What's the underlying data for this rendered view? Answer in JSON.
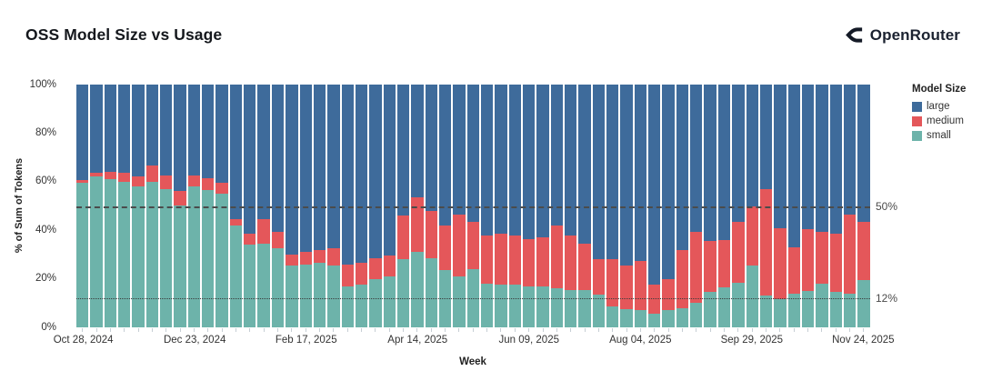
{
  "header": {
    "title": "OSS Model Size vs Usage",
    "logo_text": "OpenRouter"
  },
  "chart": {
    "y_axis": {
      "title": "% of Sum of Tokens",
      "ticks": [
        "0%",
        "20%",
        "40%",
        "60%",
        "80%",
        "100%"
      ],
      "tick_values": [
        0,
        20,
        40,
        60,
        80,
        100
      ]
    },
    "x_axis": {
      "title": "Week",
      "ticks": [
        "Oct 28, 2024",
        "Dec 23, 2024",
        "Feb 17, 2025",
        "Apr 14, 2025",
        "Jun 09, 2025",
        "Aug 04, 2025",
        "Sep 29, 2025",
        "Nov 24, 2025"
      ],
      "tick_indices": [
        0,
        8,
        16,
        24,
        32,
        40,
        48,
        56
      ]
    },
    "legend": {
      "title": "Model Size",
      "items": [
        {
          "label": "large",
          "color": "#3e6b9b"
        },
        {
          "label": "medium",
          "color": "#e4575a"
        },
        {
          "label": "small",
          "color": "#6db3aa"
        }
      ]
    }
  },
  "chart_data": {
    "type": "bar",
    "stacked": true,
    "unit": "percent",
    "title": "OSS Model Size vs Usage",
    "xlabel": "Week",
    "ylabel": "% of Sum of Tokens",
    "ylim": [
      0,
      100
    ],
    "grid": false,
    "legend_position": "right",
    "x": [
      "Oct 28, 2024",
      "Nov 04, 2024",
      "Nov 11, 2024",
      "Nov 18, 2024",
      "Nov 25, 2024",
      "Dec 02, 2024",
      "Dec 09, 2024",
      "Dec 16, 2024",
      "Dec 23, 2024",
      "Dec 30, 2024",
      "Jan 06, 2025",
      "Jan 13, 2025",
      "Jan 20, 2025",
      "Jan 27, 2025",
      "Feb 03, 2025",
      "Feb 10, 2025",
      "Feb 17, 2025",
      "Feb 24, 2025",
      "Mar 03, 2025",
      "Mar 10, 2025",
      "Mar 17, 2025",
      "Mar 24, 2025",
      "Mar 31, 2025",
      "Apr 07, 2025",
      "Apr 14, 2025",
      "Apr 21, 2025",
      "Apr 28, 2025",
      "May 05, 2025",
      "May 12, 2025",
      "May 19, 2025",
      "May 26, 2025",
      "Jun 02, 2025",
      "Jun 09, 2025",
      "Jun 16, 2025",
      "Jun 23, 2025",
      "Jun 30, 2025",
      "Jul 07, 2025",
      "Jul 14, 2025",
      "Jul 21, 2025",
      "Jul 28, 2025",
      "Aug 04, 2025",
      "Aug 11, 2025",
      "Aug 18, 2025",
      "Aug 25, 2025",
      "Sep 01, 2025",
      "Sep 08, 2025",
      "Sep 15, 2025",
      "Sep 22, 2025",
      "Sep 29, 2025",
      "Oct 06, 2025",
      "Oct 13, 2025",
      "Oct 20, 2025",
      "Oct 27, 2025",
      "Nov 03, 2025",
      "Nov 10, 2025",
      "Nov 17, 2025",
      "Nov 24, 2025"
    ],
    "series": [
      {
        "name": "small",
        "color": "#6db3aa",
        "values": [
          59.5,
          62,
          61,
          60,
          58,
          60,
          57,
          50,
          58,
          56.5,
          55,
          42,
          34,
          34.5,
          32.5,
          25.5,
          26,
          26.5,
          25.5,
          17,
          17.5,
          20,
          21,
          28,
          31,
          28.5,
          23.5,
          21,
          24,
          18,
          17.5,
          17.5,
          17,
          17,
          16,
          15.5,
          15.5,
          13.5,
          8.5,
          7.5,
          7,
          5.5,
          7,
          8,
          10,
          14.5,
          16.5,
          18.5,
          25.5,
          13,
          11.5,
          14,
          15,
          18,
          14.5,
          14,
          19.5
        ]
      },
      {
        "name": "medium",
        "color": "#e4575a",
        "values": [
          1,
          1.5,
          3,
          3.5,
          4,
          6.5,
          5.5,
          6,
          4.5,
          5,
          4.5,
          2.5,
          4.5,
          10,
          7,
          4.5,
          5,
          5.5,
          7,
          9,
          9,
          8.5,
          8.5,
          18,
          22.5,
          19.5,
          18.5,
          25.5,
          19.5,
          20,
          21,
          20.5,
          19.5,
          20,
          26,
          22.5,
          19,
          14.5,
          19.5,
          18,
          20.5,
          12,
          13,
          24,
          29.5,
          21,
          19.5,
          25,
          24.5,
          44,
          29.5,
          19,
          25.5,
          21.5,
          24,
          32.5,
          24
        ]
      },
      {
        "name": "large",
        "color": "#3e6b9b",
        "values": [
          39.5,
          36.5,
          36,
          36.5,
          38,
          33.5,
          37.5,
          44,
          37.5,
          38.5,
          40.5,
          55.5,
          61.5,
          55.5,
          60.5,
          70,
          69,
          68,
          67.5,
          74,
          73.5,
          71.5,
          70.5,
          54,
          46.5,
          52,
          58,
          53.5,
          56.5,
          62,
          61.5,
          62,
          63.5,
          63,
          58,
          62,
          65.5,
          72,
          72,
          74.5,
          72.5,
          82.5,
          80,
          68,
          60.5,
          64.5,
          64,
          56.5,
          50,
          43,
          59,
          67,
          59.5,
          60.5,
          61.5,
          53.5,
          56.5
        ]
      }
    ],
    "reference_lines": [
      {
        "label": "50%",
        "value": 50,
        "style": "dashed"
      },
      {
        "label": "12%",
        "value": 12,
        "style": "dotted"
      }
    ]
  }
}
